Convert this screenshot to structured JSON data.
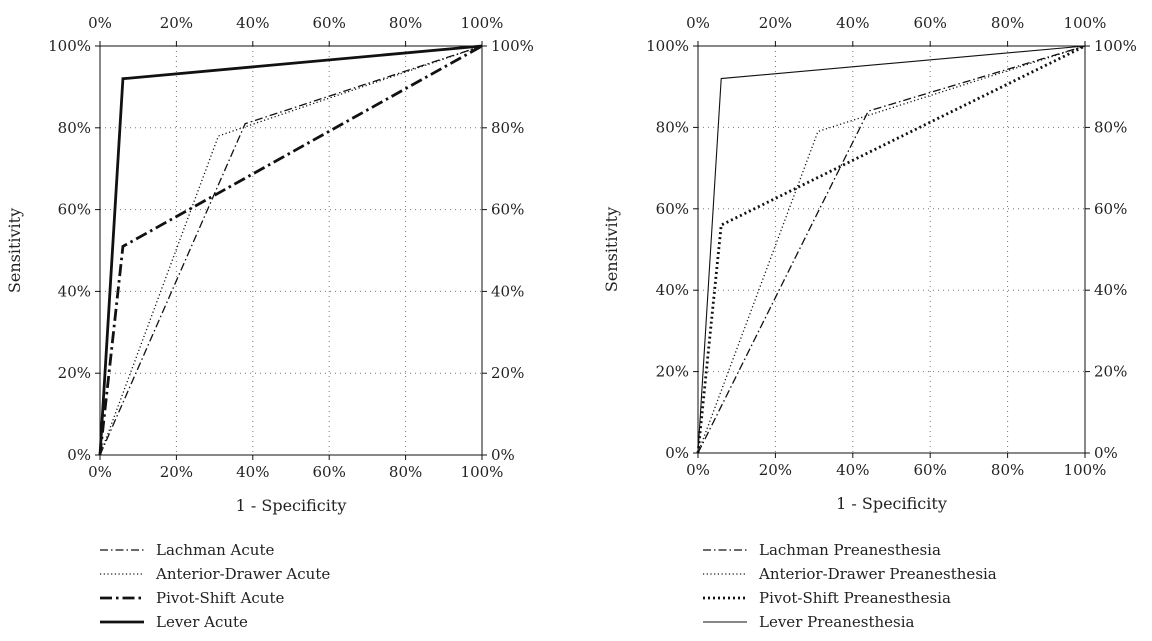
{
  "chart_data": [
    {
      "type": "line",
      "xlabel": "1 - Specificity",
      "ylabel": "Sensitivity",
      "xlim": [
        0,
        1
      ],
      "ylim": [
        0,
        1
      ],
      "grid": true,
      "legend_position": "bottom",
      "ticks": [
        "0%",
        "20%",
        "40%",
        "60%",
        "80%",
        "100%"
      ],
      "series": [
        {
          "name": "Lachman Acute",
          "style": "dash-dot",
          "weight": "normal",
          "x": [
            0,
            0.38,
            1
          ],
          "y": [
            0,
            0.81,
            1
          ]
        },
        {
          "name": "Anterior-Drawer Acute",
          "style": "dotted",
          "weight": "normal",
          "x": [
            0,
            0.31,
            1
          ],
          "y": [
            0,
            0.78,
            1
          ]
        },
        {
          "name": "Pivot-Shift Acute",
          "style": "dash-dot",
          "weight": "bold",
          "x": [
            0,
            0.06,
            1
          ],
          "y": [
            0,
            0.51,
            1
          ]
        },
        {
          "name": "Lever Acute",
          "style": "solid",
          "weight": "bold",
          "x": [
            0,
            0.06,
            1
          ],
          "y": [
            0,
            0.92,
            1
          ]
        }
      ]
    },
    {
      "type": "line",
      "xlabel": "1 - Specificity",
      "ylabel": "Sensitivity",
      "xlim": [
        0,
        1
      ],
      "ylim": [
        0,
        1
      ],
      "grid": true,
      "legend_position": "bottom",
      "ticks": [
        "0%",
        "20%",
        "40%",
        "60%",
        "80%",
        "100%"
      ],
      "series": [
        {
          "name": "Lachman Preanesthesia",
          "style": "dash-dot",
          "weight": "normal",
          "x": [
            0,
            0.44,
            1
          ],
          "y": [
            0,
            0.84,
            1
          ]
        },
        {
          "name": "Anterior-Drawer Preanesthesia",
          "style": "dotted",
          "weight": "normal",
          "x": [
            0,
            0.31,
            1
          ],
          "y": [
            0,
            0.79,
            1
          ]
        },
        {
          "name": "Pivot-Shift Preanesthesia",
          "style": "dotted",
          "weight": "bold",
          "x": [
            0,
            0.06,
            1
          ],
          "y": [
            0,
            0.56,
            1
          ]
        },
        {
          "name": "Lever Preanesthesia",
          "style": "solid",
          "weight": "thin",
          "x": [
            0,
            0.06,
            1
          ],
          "y": [
            0,
            0.92,
            1
          ]
        }
      ]
    }
  ]
}
